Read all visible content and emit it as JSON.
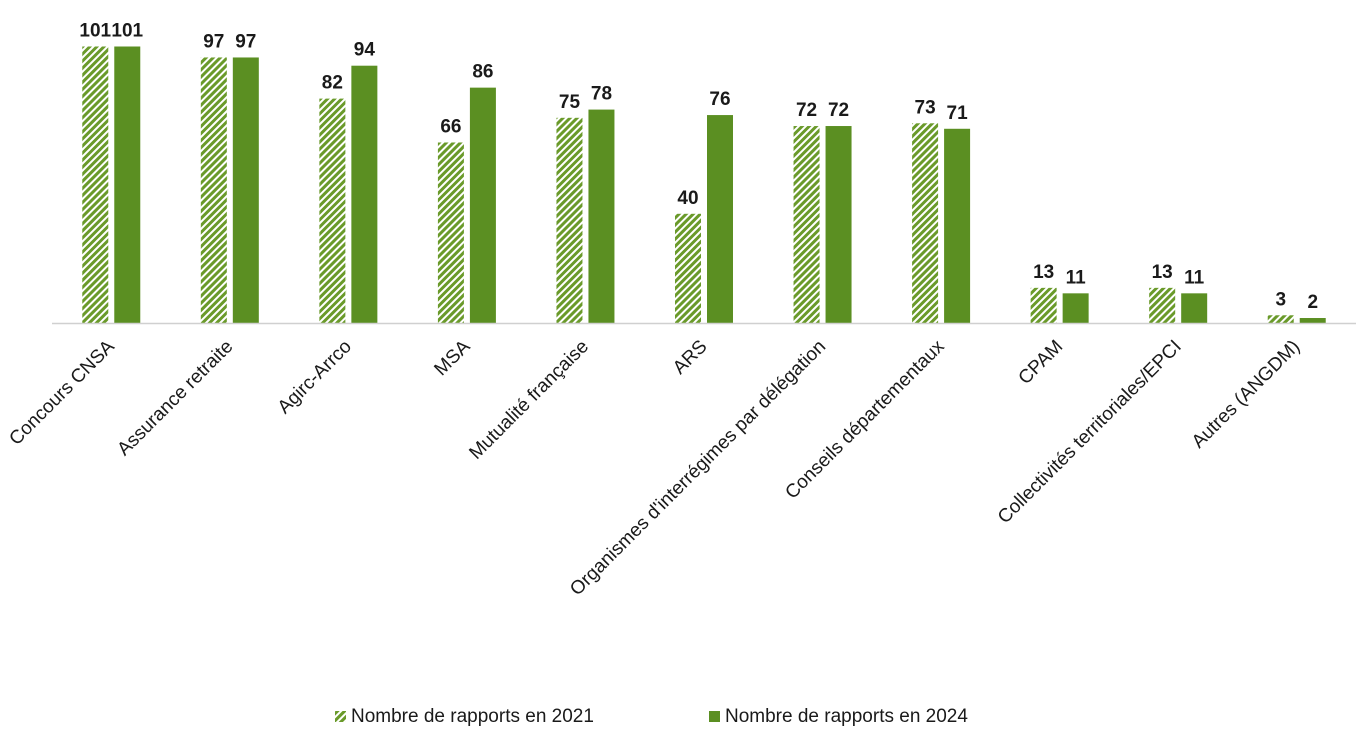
{
  "chart_data": {
    "type": "bar",
    "categories": [
      "Concours CNSA",
      "Assurance retraite",
      "Agirc-Arrco",
      "MSA",
      "Mutualité française",
      "ARS",
      "Organismes d'interrégimes par délégation",
      "Conseils départementaux",
      "CPAM",
      "Collectivités territoriales/EPCI",
      "Autres (ANGDM)"
    ],
    "series": [
      {
        "name": "Nombre de rapports en 2021",
        "values": [
          101,
          97,
          82,
          66,
          75,
          40,
          72,
          73,
          13,
          13,
          3
        ],
        "pattern": "hatched",
        "color": "#6a9a2a"
      },
      {
        "name": "Nombre de rapports en 2024",
        "values": [
          101,
          97,
          94,
          86,
          78,
          76,
          72,
          71,
          11,
          11,
          2
        ],
        "pattern": "solid",
        "color": "#5b8f22"
      }
    ],
    "ylim": [
      0,
      101
    ],
    "data_labels": true,
    "grid": false,
    "legend_position": "bottom-center"
  }
}
